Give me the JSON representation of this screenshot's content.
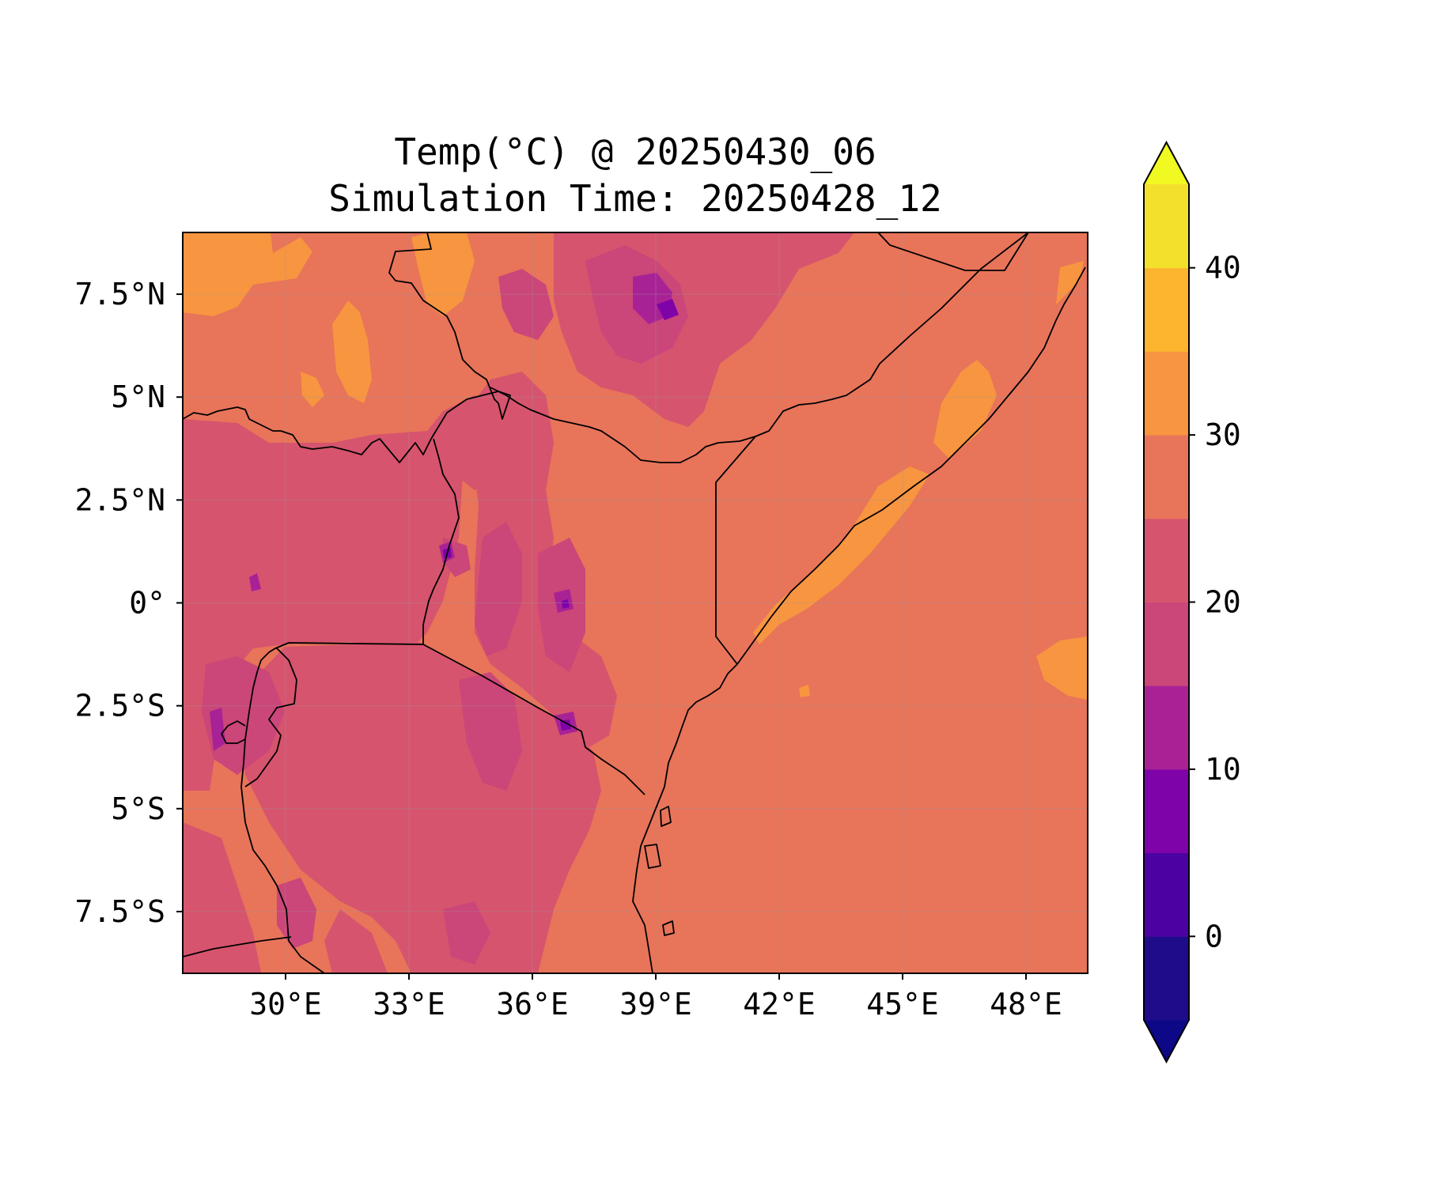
{
  "title": {
    "line1": "Temp(°C) @ 20250430_06",
    "line2": "Simulation Time: 20250428_12"
  },
  "map": {
    "lon_range": [
      27.5,
      49.5
    ],
    "lat_range": [
      -9.0,
      9.0
    ],
    "x_ticks": [
      {
        "value": 30,
        "label": "30°E"
      },
      {
        "value": 33,
        "label": "33°E"
      },
      {
        "value": 36,
        "label": "36°E"
      },
      {
        "value": 39,
        "label": "39°E"
      },
      {
        "value": 42,
        "label": "42°E"
      },
      {
        "value": 45,
        "label": "45°E"
      },
      {
        "value": 48,
        "label": "48°E"
      }
    ],
    "y_ticks": [
      {
        "value": 7.5,
        "label": "7.5°N"
      },
      {
        "value": 5,
        "label": "5°N"
      },
      {
        "value": 2.5,
        "label": "2.5°N"
      },
      {
        "value": 0,
        "label": "0°"
      },
      {
        "value": -2.5,
        "label": "2.5°S"
      },
      {
        "value": -5,
        "label": "5°S"
      },
      {
        "value": -7.5,
        "label": "7.5°S"
      }
    ],
    "gridlines": true,
    "field": "temperature",
    "units": "°C"
  },
  "colorbar": {
    "range": [
      -5,
      45
    ],
    "levels": [
      -5,
      0,
      5,
      10,
      15,
      20,
      25,
      30,
      35,
      40,
      45
    ],
    "colors": [
      "#1f0c8a",
      "#4c02a1",
      "#7e03a8",
      "#a82296",
      "#cb4679",
      "#d6546e",
      "#e8745a",
      "#f89540",
      "#fdb42f",
      "#f3e02c"
    ],
    "under_color": "#0d0887",
    "over_color": "#f0f921",
    "extend": "both",
    "ticks": [
      {
        "value": 0,
        "label": "0"
      },
      {
        "value": 10,
        "label": "10"
      },
      {
        "value": 20,
        "label": "20"
      },
      {
        "value": 30,
        "label": "30"
      },
      {
        "value": 40,
        "label": "40"
      }
    ]
  }
}
